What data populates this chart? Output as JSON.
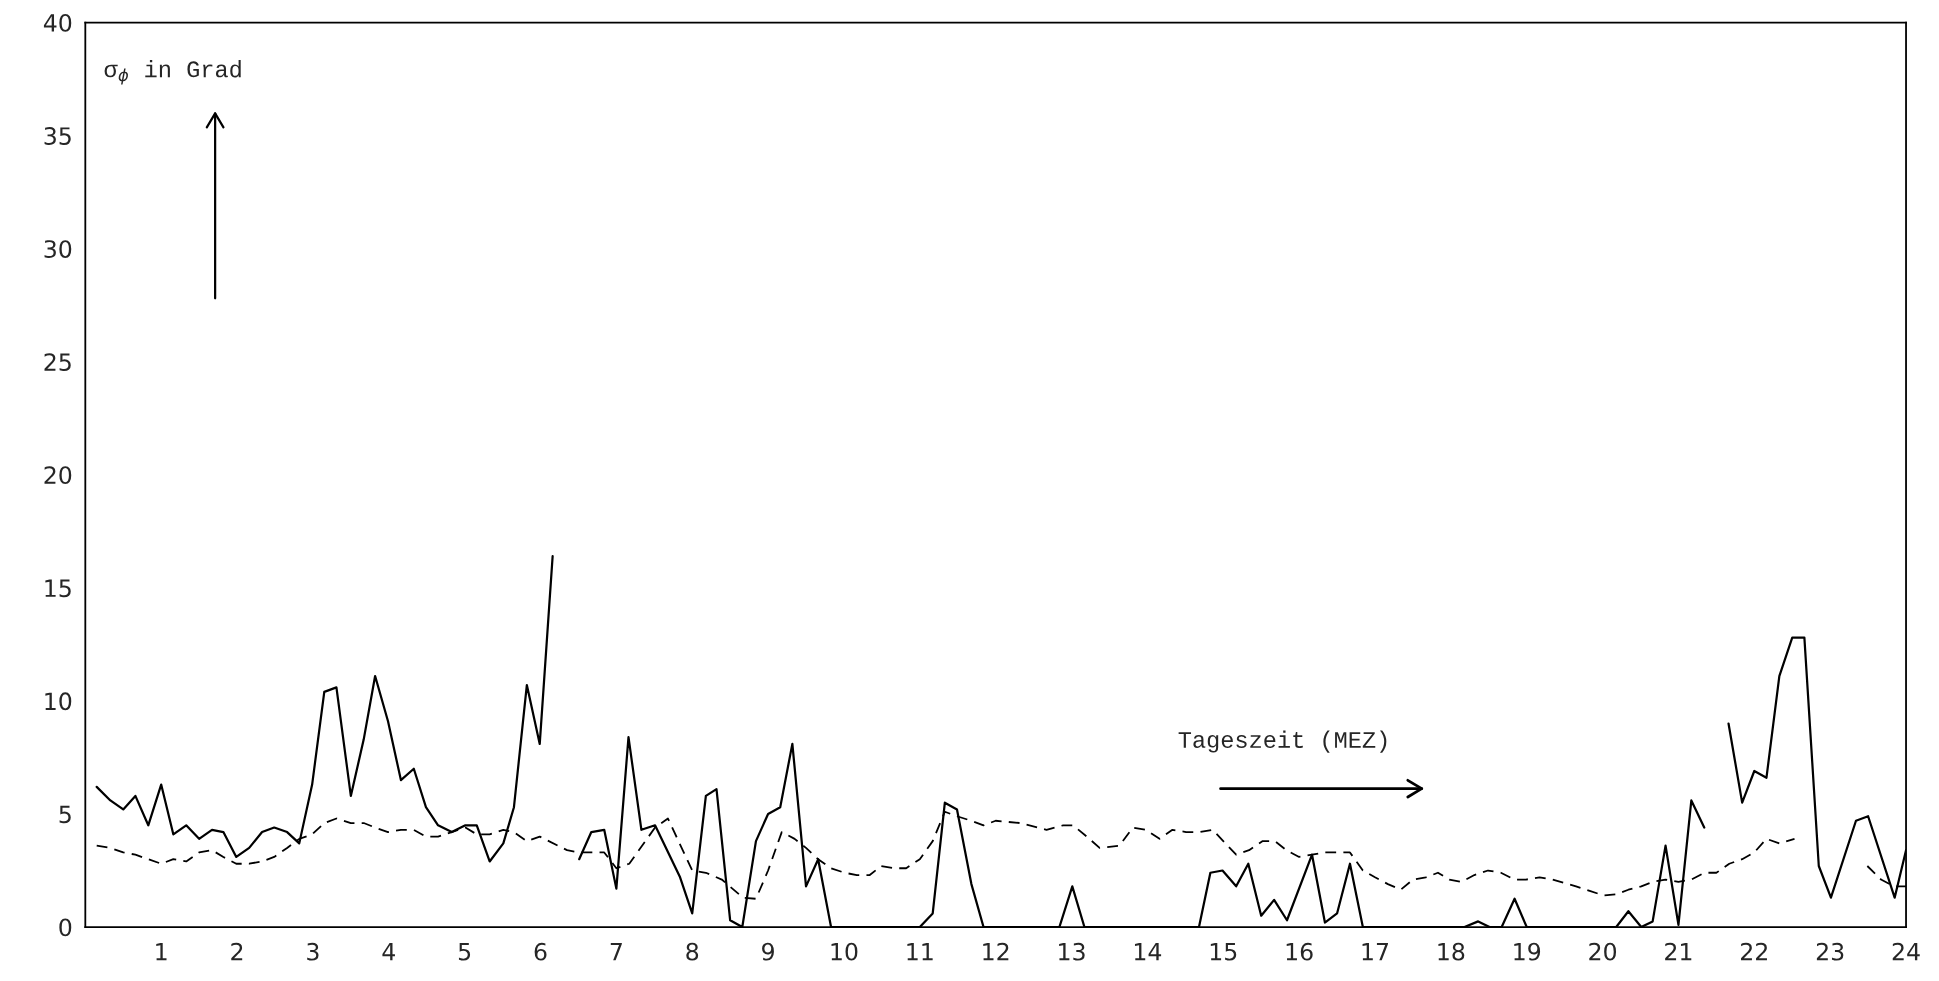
{
  "chart_data": {
    "type": "line",
    "annotations": [
      "σ$_{ϕ}$ in Grad",
      "Tageszeit (MEZ)"
    ],
    "xlim": [
      0,
      24
    ],
    "ylim": [
      0,
      40
    ],
    "xticks": [
      {
        "value": 0,
        "label": null
      },
      1,
      2,
      3,
      4,
      5,
      6,
      7,
      8,
      9,
      10,
      11,
      12,
      13,
      14,
      15,
      16,
      17,
      18,
      19,
      20,
      21,
      22,
      23,
      24
    ],
    "yticks": [
      0,
      5,
      10,
      15,
      20,
      25,
      30,
      35,
      40
    ],
    "grid": false,
    "legend": false,
    "marker": "none",
    "series": [
      {
        "color": "#000000",
        "line_style": "solid",
        "x": [
          0.15,
          0.33,
          0.5,
          0.66,
          0.83,
          1.0,
          1.16,
          1.33,
          1.5,
          1.67,
          1.82,
          1.99,
          2.16,
          2.33,
          2.49,
          2.66,
          2.82,
          2.99,
          3.15,
          3.31,
          3.5,
          3.67,
          3.82,
          3.99,
          4.16,
          4.33,
          4.49,
          4.65,
          4.83,
          5.01,
          5.16,
          5.33,
          5.51,
          5.65,
          5.82,
          5.99,
          6.16,
          6.33,
          6.51,
          6.67,
          6.84,
          7.0,
          7.16,
          7.33,
          7.51,
          7.84,
          8.0,
          8.18,
          8.32,
          8.5,
          8.66,
          8.84,
          9.0,
          9.16,
          9.32,
          9.5,
          9.66,
          9.83,
          11.0,
          11.17,
          11.33,
          11.49,
          11.68,
          11.84,
          12.84,
          13.01,
          13.17,
          14.68,
          14.83,
          14.99,
          15.17,
          15.33,
          15.5,
          15.67,
          15.84,
          16.17,
          16.34,
          16.5,
          16.67,
          16.84,
          18.18,
          18.36,
          18.51,
          18.67,
          18.84,
          19.0,
          20.18,
          20.34,
          20.51,
          20.66,
          20.83,
          21.0,
          21.17,
          21.34,
          21.5,
          21.66,
          21.84,
          22.0,
          22.16,
          22.33,
          22.5,
          22.66,
          22.85,
          23.01,
          23.34,
          23.5,
          23.85,
          24.0
        ],
        "values": [
          6.2,
          5.6,
          5.2,
          5.8,
          4.5,
          6.3,
          4.1,
          4.5,
          3.9,
          4.3,
          4.2,
          3.1,
          3.5,
          4.2,
          4.4,
          4.2,
          3.7,
          6.3,
          10.4,
          10.6,
          5.8,
          8.3,
          11.1,
          9.1,
          6.5,
          7.0,
          5.3,
          4.5,
          4.2,
          4.5,
          4.5,
          2.9,
          3.7,
          5.3,
          10.7,
          8.1,
          16.4,
          null,
          3.0,
          4.2,
          4.3,
          1.7,
          8.4,
          4.3,
          4.5,
          2.2,
          0.6,
          5.8,
          6.1,
          0.3,
          0.0,
          3.8,
          5.0,
          5.3,
          8.1,
          1.8,
          3.0,
          0.0,
          0.0,
          0.6,
          5.5,
          5.2,
          1.9,
          0.0,
          0.0,
          1.8,
          0.0,
          0.0,
          2.4,
          2.5,
          1.8,
          2.8,
          0.5,
          1.2,
          0.3,
          3.2,
          0.2,
          0.6,
          2.8,
          0.0,
          0.0,
          0.25,
          0.0,
          0.0,
          1.25,
          0.0,
          0.0,
          0.7,
          0.0,
          0.25,
          3.6,
          0.1,
          5.6,
          4.4,
          null,
          9.0,
          5.5,
          6.9,
          6.6,
          11.1,
          12.8,
          12.8,
          2.7,
          1.3,
          4.7,
          4.9,
          1.3,
          3.4
        ]
      },
      {
        "color": "#000000",
        "line_style": "dashed",
        "x": [
          0.15,
          0.33,
          0.5,
          0.66,
          0.83,
          1.0,
          1.16,
          1.33,
          1.5,
          1.67,
          1.82,
          1.99,
          2.16,
          2.33,
          2.49,
          2.66,
          2.82,
          2.99,
          3.15,
          3.31,
          3.5,
          3.67,
          3.82,
          3.99,
          4.16,
          4.33,
          4.49,
          4.65,
          4.83,
          5.01,
          5.16,
          5.33,
          5.51,
          5.65,
          5.82,
          5.99,
          6.35,
          6.51,
          6.84,
          7.0,
          7.17,
          7.51,
          7.68,
          8.0,
          8.18,
          8.39,
          8.67,
          8.84,
          9.0,
          9.18,
          9.35,
          9.5,
          9.66,
          9.83,
          10.01,
          10.17,
          10.34,
          10.49,
          10.67,
          10.82,
          11.0,
          11.17,
          11.33,
          11.49,
          11.68,
          11.84,
          12.0,
          12.32,
          12.67,
          12.89,
          13.02,
          13.2,
          13.37,
          13.63,
          13.81,
          13.98,
          14.16,
          14.33,
          14.51,
          14.69,
          14.86,
          15.0,
          15.17,
          15.34,
          15.52,
          15.68,
          15.83,
          16.0,
          16.17,
          16.34,
          16.5,
          16.67,
          16.84,
          17.0,
          17.17,
          17.34,
          17.5,
          17.67,
          17.83,
          17.98,
          18.14,
          18.31,
          18.49,
          18.66,
          18.84,
          18.99,
          19.17,
          19.34,
          19.65,
          19.83,
          20.01,
          20.18,
          20.34,
          20.51,
          20.66,
          20.83,
          21.0,
          21.17,
          21.34,
          21.5,
          21.67,
          21.84,
          22.0,
          22.16,
          22.33,
          22.53,
          23.0,
          23.49,
          23.67,
          23.84,
          24.0
        ],
        "values": [
          3.6,
          3.5,
          3.3,
          3.2,
          3.0,
          2.8,
          3.0,
          2.9,
          3.3,
          3.4,
          3.1,
          2.8,
          2.8,
          2.9,
          3.1,
          3.5,
          3.9,
          4.1,
          4.6,
          4.8,
          4.6,
          4.6,
          4.4,
          4.2,
          4.3,
          4.3,
          4.0,
          4.0,
          4.2,
          4.4,
          4.1,
          4.1,
          4.3,
          4.2,
          3.8,
          4.0,
          3.4,
          3.3,
          3.3,
          2.6,
          2.8,
          4.4,
          4.8,
          2.5,
          2.4,
          2.1,
          1.3,
          1.25,
          2.5,
          4.2,
          3.9,
          3.5,
          3.0,
          2.6,
          2.4,
          2.3,
          2.3,
          2.7,
          2.6,
          2.6,
          3.0,
          3.8,
          5.1,
          4.9,
          4.7,
          4.5,
          4.7,
          4.6,
          4.3,
          4.5,
          4.5,
          4.0,
          3.5,
          3.6,
          4.4,
          4.3,
          3.9,
          4.3,
          4.2,
          4.2,
          4.3,
          3.8,
          3.2,
          3.4,
          3.8,
          3.8,
          3.4,
          3.1,
          3.2,
          3.3,
          3.3,
          3.3,
          2.5,
          2.2,
          1.9,
          1.65,
          2.1,
          2.2,
          2.4,
          2.1,
          2.0,
          2.3,
          2.5,
          2.4,
          2.1,
          2.1,
          2.2,
          2.1,
          1.8,
          1.6,
          1.4,
          1.45,
          1.65,
          1.8,
          2.0,
          2.1,
          2.0,
          2.1,
          2.4,
          2.4,
          2.8,
          3.0,
          3.3,
          3.9,
          3.7,
          3.9,
          null,
          2.7,
          2.1,
          1.8,
          1.8
        ]
      }
    ]
  }
}
